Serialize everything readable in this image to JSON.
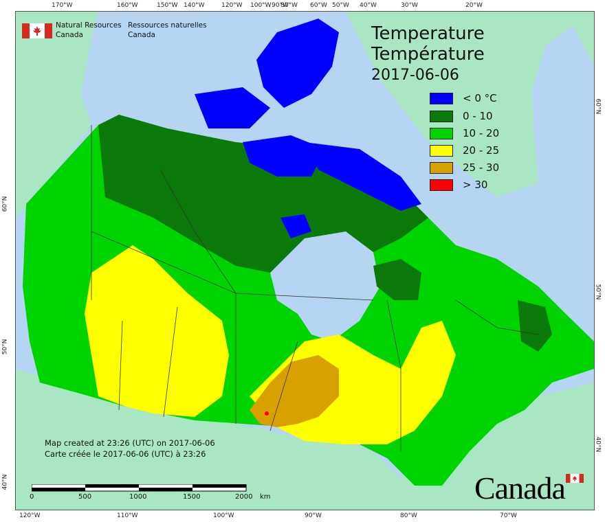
{
  "header": {
    "title_en": "Temperature",
    "title_fr": "Température",
    "date": "2017-06-06"
  },
  "agency": {
    "name_en_line1": "Natural Resources",
    "name_en_line2": "Canada",
    "name_fr_line1": "Ressources naturelles",
    "name_fr_line2": "Canada"
  },
  "legend": {
    "items": [
      {
        "label": "< 0 °C",
        "color": "#0000ff"
      },
      {
        "label": "0 - 10",
        "color": "#0b7a0b"
      },
      {
        "label": "10 - 20",
        "color": "#00d400"
      },
      {
        "label": "20 - 25",
        "color": "#ffff00"
      },
      {
        "label": "25 - 30",
        "color": "#d8a000"
      },
      {
        "label": "> 30",
        "color": "#ff0000"
      }
    ]
  },
  "footer": {
    "created_en": "Map created at 23:26 (UTC) on 2017-06-06",
    "created_fr": "Carte créée le 2017-06-06 (UTC) à 23:26"
  },
  "scale_bar": {
    "labels": [
      "0",
      "500",
      "1000",
      "1500",
      "2000",
      "km"
    ]
  },
  "wordmark": "Canada",
  "graticule": {
    "top_labels": [
      "170°W",
      "160°W",
      "150°W",
      "140°W",
      "120°W",
      "100°W",
      "90°W",
      "80°W",
      "60°W",
      "50°W",
      "40°W",
      "30°W",
      "20°W"
    ],
    "bottom_labels": [
      "120°W",
      "110°W",
      "100°W",
      "90°W",
      "80°W",
      "70°W"
    ],
    "left_labels": [
      "60°N",
      "50°N",
      "40°N"
    ],
    "right_labels": [
      "60°N",
      "50°N",
      "40°N"
    ]
  },
  "colors": {
    "water": "#b6d5f2",
    "foreign_land": "#a8e6c4",
    "border": "#333333"
  }
}
